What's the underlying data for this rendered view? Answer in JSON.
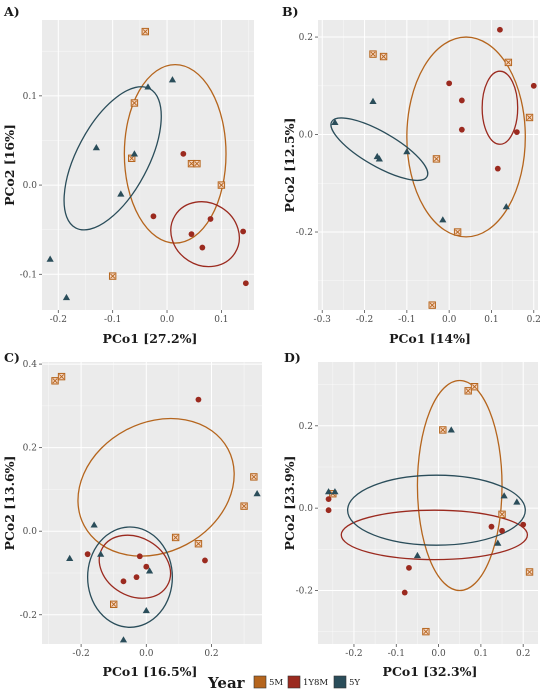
{
  "colors": {
    "5M": "#b5651d",
    "1Y8M": "#9b2a1f",
    "5Y": "#2a4d5a",
    "panel_bg": "#ebebeb",
    "grid": "#ffffff"
  },
  "legend": {
    "title": "Year",
    "items": [
      {
        "key": "5M",
        "label": "5M",
        "shape": "square"
      },
      {
        "key": "1Y8M",
        "label": "1Y8M",
        "shape": "circle"
      },
      {
        "key": "5Y",
        "label": "5Y",
        "shape": "triangle"
      }
    ]
  },
  "chart_data": [
    {
      "panel": "A)",
      "type": "scatter",
      "xlabel": "PCo1 [27.2%]",
      "ylabel": "PCo2 [16%]",
      "xlim": [
        -0.23,
        0.16
      ],
      "ylim": [
        -0.14,
        0.185
      ],
      "xticks": [
        -0.2,
        -0.1,
        0.0,
        0.1
      ],
      "yticks": [
        -0.1,
        0.0,
        0.1
      ],
      "xtick_labels": [
        "-0.2",
        "-0.1",
        "0.0",
        "0.1"
      ],
      "ytick_labels": [
        "-0.1",
        "0.0",
        "0.1"
      ],
      "series": [
        {
          "name": "5M",
          "points": [
            [
              -0.04,
              0.172
            ],
            [
              -0.06,
              0.092
            ],
            [
              -0.065,
              0.03
            ],
            [
              -0.1,
              -0.102
            ],
            [
              0.045,
              0.024
            ],
            [
              0.055,
              0.024
            ],
            [
              0.1,
              0.0
            ]
          ]
        },
        {
          "name": "1Y8M",
          "points": [
            [
              0.03,
              0.035
            ],
            [
              -0.025,
              -0.035
            ],
            [
              0.045,
              -0.055
            ],
            [
              0.065,
              -0.07
            ],
            [
              0.08,
              -0.038
            ],
            [
              0.14,
              -0.052
            ],
            [
              0.145,
              -0.11
            ]
          ]
        },
        {
          "name": "5Y",
          "points": [
            [
              -0.215,
              -0.083
            ],
            [
              -0.185,
              -0.126
            ],
            [
              -0.13,
              0.042
            ],
            [
              -0.085,
              -0.01
            ],
            [
              -0.06,
              0.035
            ],
            [
              -0.035,
              0.11
            ],
            [
              0.01,
              0.118
            ]
          ]
        }
      ],
      "ellipses": [
        {
          "name": "5M",
          "cx": 0.015,
          "cy": 0.035,
          "rx": 0.0935,
          "ry": 0.1,
          "angle_deg": 0
        },
        {
          "name": "1Y8M",
          "cx": 0.07,
          "cy": -0.055,
          "rx": 0.065,
          "ry": 0.035,
          "angle_deg": -32
        },
        {
          "name": "5Y",
          "cx": -0.1,
          "cy": 0.03,
          "rx": 0.145,
          "ry": 0.04,
          "angle_deg": 62
        }
      ]
    },
    {
      "panel": "B)",
      "type": "scatter",
      "xlabel": "PCo1 [14%]",
      "ylabel": "PCo2 [12.5%]",
      "xlim": [
        -0.31,
        0.21
      ],
      "ylim": [
        -0.36,
        0.235
      ],
      "xticks": [
        -0.3,
        -0.2,
        -0.1,
        0.0,
        0.1,
        0.2
      ],
      "yticks": [
        -0.2,
        0.0,
        0.2
      ],
      "xtick_labels": [
        "-0.3",
        "-0.2",
        "-0.1",
        "0.0",
        "0.1",
        "0.2"
      ],
      "ytick_labels": [
        "-0.2",
        "0.0",
        "0.2"
      ],
      "series": [
        {
          "name": "5M",
          "points": [
            [
              -0.18,
              0.165
            ],
            [
              -0.155,
              0.16
            ],
            [
              0.14,
              0.148
            ],
            [
              0.19,
              0.035
            ],
            [
              -0.03,
              -0.05
            ],
            [
              0.02,
              -0.2
            ],
            [
              -0.04,
              -0.35
            ]
          ]
        },
        {
          "name": "1Y8M",
          "points": [
            [
              0.12,
              0.215
            ],
            [
              0.0,
              0.105
            ],
            [
              0.03,
              0.07
            ],
            [
              0.03,
              0.01
            ],
            [
              0.2,
              0.1
            ],
            [
              0.16,
              0.005
            ],
            [
              0.115,
              -0.07
            ]
          ]
        },
        {
          "name": "5Y",
          "points": [
            [
              -0.27,
              0.025
            ],
            [
              -0.18,
              0.068
            ],
            [
              -0.17,
              -0.045
            ],
            [
              -0.165,
              -0.05
            ],
            [
              -0.1,
              -0.035
            ],
            [
              -0.015,
              -0.175
            ],
            [
              0.135,
              -0.148
            ]
          ]
        }
      ],
      "ellipses": [
        {
          "name": "5M",
          "cx": 0.04,
          "cy": -0.005,
          "rx": 0.14,
          "ry": 0.205,
          "angle_deg": 0
        },
        {
          "name": "1Y8M",
          "cx": 0.12,
          "cy": 0.055,
          "rx": 0.042,
          "ry": 0.075,
          "angle_deg": 0
        },
        {
          "name": "5Y",
          "cx": -0.165,
          "cy": -0.03,
          "rx": 0.13,
          "ry": 0.035,
          "angle_deg": -30
        }
      ]
    },
    {
      "panel": "C)",
      "type": "scatter",
      "xlabel": "PCo1 [16.5%]",
      "ylabel": "PCo2 [13.6%]",
      "xlim": [
        -0.32,
        0.355
      ],
      "ylim": [
        -0.27,
        0.405
      ],
      "xticks": [
        -0.2,
        0.0,
        0.2
      ],
      "yticks": [
        -0.2,
        0.0,
        0.2,
        0.4
      ],
      "xtick_labels": [
        "-0.2",
        "0.0",
        "0.2"
      ],
      "ytick_labels": [
        "-0.2",
        "0.0",
        "0.2",
        "0.4"
      ],
      "series": [
        {
          "name": "5M",
          "points": [
            [
              -0.28,
              0.36
            ],
            [
              -0.26,
              0.37
            ],
            [
              0.33,
              0.13
            ],
            [
              0.3,
              0.06
            ],
            [
              0.16,
              -0.03
            ],
            [
              0.09,
              -0.015
            ],
            [
              -0.1,
              -0.175
            ]
          ]
        },
        {
          "name": "1Y8M",
          "points": [
            [
              0.16,
              0.315
            ],
            [
              0.18,
              -0.07
            ],
            [
              -0.18,
              -0.055
            ],
            [
              -0.07,
              -0.12
            ],
            [
              -0.03,
              -0.11
            ],
            [
              -0.02,
              -0.06
            ],
            [
              0.0,
              -0.085
            ]
          ]
        },
        {
          "name": "5Y",
          "points": [
            [
              -0.235,
              -0.065
            ],
            [
              -0.16,
              0.015
            ],
            [
              -0.14,
              -0.055
            ],
            [
              0.01,
              -0.095
            ],
            [
              0.0,
              -0.19
            ],
            [
              -0.07,
              -0.26
            ],
            [
              0.34,
              0.09
            ]
          ]
        }
      ],
      "ellipses": [
        {
          "name": "5M",
          "cx": 0.03,
          "cy": 0.105,
          "rx": 0.25,
          "ry": 0.155,
          "angle_deg": 28
        },
        {
          "name": "1Y8M",
          "cx": -0.035,
          "cy": -0.085,
          "rx": 0.115,
          "ry": 0.07,
          "angle_deg": -30
        },
        {
          "name": "5Y",
          "cx": -0.05,
          "cy": -0.11,
          "rx": 0.13,
          "ry": 0.12,
          "angle_deg": 0
        }
      ]
    },
    {
      "panel": "D)",
      "type": "scatter",
      "xlabel": "PCo1 [32.3%]",
      "ylabel": "PCo2 [23.9%]",
      "xlim": [
        -0.285,
        0.235
      ],
      "ylim": [
        -0.33,
        0.355
      ],
      "xticks": [
        -0.2,
        -0.1,
        0.0,
        0.1,
        0.2
      ],
      "yticks": [
        -0.2,
        0.0,
        0.2
      ],
      "xtick_labels": [
        "-0.2",
        "-0.1",
        "0.0",
        "0.1",
        "0.2"
      ],
      "ytick_labels": [
        "-0.2",
        "0.0",
        "0.2"
      ],
      "series": [
        {
          "name": "5M",
          "points": [
            [
              0.07,
              0.285
            ],
            [
              0.085,
              0.295
            ],
            [
              0.01,
              0.19
            ],
            [
              -0.25,
              0.035
            ],
            [
              0.15,
              -0.015
            ],
            [
              0.215,
              -0.155
            ],
            [
              -0.03,
              -0.3
            ]
          ]
        },
        {
          "name": "1Y8M",
          "points": [
            [
              -0.26,
              0.022
            ],
            [
              -0.26,
              -0.005
            ],
            [
              0.125,
              -0.045
            ],
            [
              0.2,
              -0.04
            ],
            [
              -0.07,
              -0.145
            ],
            [
              -0.08,
              -0.205
            ],
            [
              0.15,
              -0.055
            ]
          ]
        },
        {
          "name": "5Y",
          "points": [
            [
              -0.26,
              0.04
            ],
            [
              -0.245,
              0.04
            ],
            [
              0.03,
              0.19
            ],
            [
              0.155,
              0.03
            ],
            [
              0.185,
              0.015
            ],
            [
              0.14,
              -0.085
            ],
            [
              -0.05,
              -0.115
            ]
          ]
        }
      ],
      "ellipses": [
        {
          "name": "5M",
          "cx": 0.05,
          "cy": 0.055,
          "rx": 0.1,
          "ry": 0.255,
          "angle_deg": 0
        },
        {
          "name": "1Y8M",
          "cx": -0.01,
          "cy": -0.065,
          "rx": 0.22,
          "ry": 0.06,
          "angle_deg": 0
        },
        {
          "name": "5Y",
          "cx": -0.005,
          "cy": -0.005,
          "rx": 0.21,
          "ry": 0.085,
          "angle_deg": 0
        }
      ]
    }
  ]
}
